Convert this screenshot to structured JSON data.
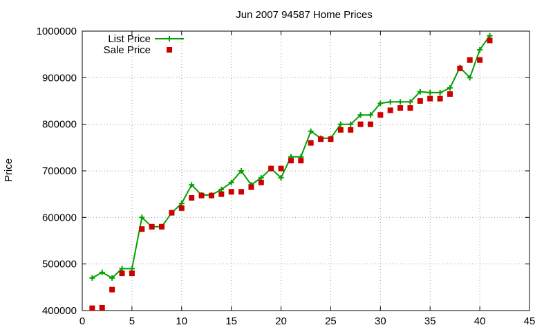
{
  "chart_data": {
    "type": "line",
    "title": "Jun 2007 94587 Home Prices",
    "xlabel": "",
    "ylabel": "Price",
    "xlim": [
      0,
      45
    ],
    "ylim": [
      400000,
      1000000
    ],
    "xticks": [
      0,
      5,
      10,
      15,
      20,
      25,
      30,
      35,
      40,
      45
    ],
    "yticks": [
      400000,
      500000,
      600000,
      700000,
      800000,
      900000,
      1000000
    ],
    "grid": true,
    "legend_position": "top-left",
    "colors": {
      "list": "#00a000",
      "sale": "#cc0000"
    },
    "series": [
      {
        "name": "List Price",
        "style": "linespoints",
        "x": [
          1,
          2,
          3,
          4,
          5,
          6,
          7,
          8,
          9,
          10,
          11,
          12,
          13,
          14,
          15,
          16,
          17,
          18,
          19,
          20,
          21,
          22,
          23,
          24,
          25,
          26,
          27,
          28,
          29,
          30,
          31,
          32,
          33,
          34,
          35,
          36,
          37,
          38,
          39,
          40,
          41
        ],
        "values": [
          470000,
          482000,
          470000,
          490000,
          490000,
          600000,
          580000,
          580000,
          610000,
          630000,
          670000,
          648000,
          648000,
          660000,
          675000,
          700000,
          670000,
          685000,
          705000,
          685000,
          730000,
          730000,
          785000,
          770000,
          770000,
          800000,
          800000,
          820000,
          820000,
          845000,
          848000,
          848000,
          848000,
          870000,
          868000,
          868000,
          878000,
          922000,
          900000,
          960000,
          990000
        ]
      },
      {
        "name": "Sale Price",
        "style": "points",
        "x": [
          1,
          2,
          3,
          4,
          5,
          6,
          7,
          8,
          9,
          10,
          11,
          12,
          13,
          14,
          15,
          16,
          17,
          18,
          19,
          20,
          21,
          22,
          23,
          24,
          25,
          26,
          27,
          28,
          29,
          30,
          31,
          32,
          33,
          34,
          35,
          36,
          37,
          38,
          39,
          40,
          41
        ],
        "values": [
          405000,
          406000,
          445000,
          480000,
          480000,
          575000,
          580000,
          580000,
          610000,
          620000,
          642000,
          647000,
          647000,
          650000,
          655000,
          655000,
          665000,
          675000,
          705000,
          705000,
          722000,
          722000,
          760000,
          768000,
          768000,
          788000,
          788000,
          800000,
          800000,
          820000,
          830000,
          835000,
          835000,
          850000,
          855000,
          855000,
          865000,
          920000,
          938000,
          938000,
          980000
        ]
      }
    ]
  }
}
